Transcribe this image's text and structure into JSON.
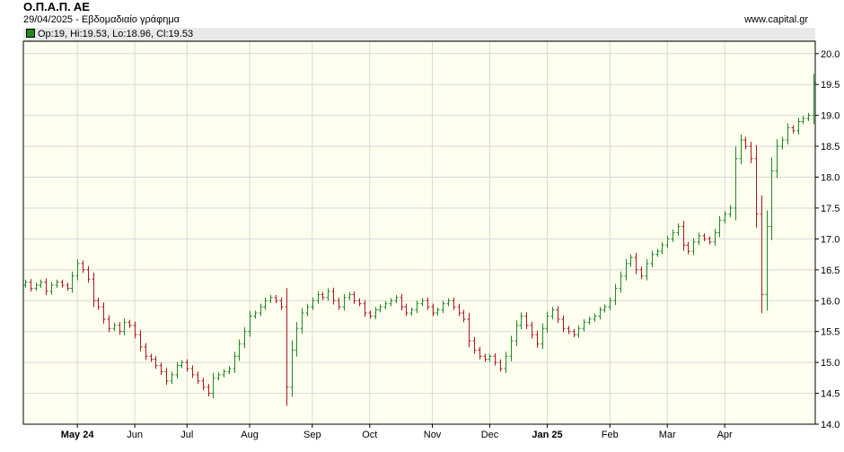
{
  "header": {
    "title": "Ο.Π.Α.Π. ΑΕ",
    "subtitle": "29/04/2025 - Εβδομαδιαίο γράφημα",
    "source": "www.capital.gr"
  },
  "legend": {
    "text": "Op:19, Hi:19.53, Lo:18.96, Cl:19.53",
    "color": "#1e8a1e"
  },
  "colors": {
    "up": "#1e8a1e",
    "down": "#b01818",
    "background": "#fffff0",
    "grid": "#d8d8d8"
  },
  "chart_data": {
    "type": "ohlc",
    "title": "Ο.Π.Α.Π. ΑΕ",
    "subtitle": "29/04/2025 - Εβδομαδιαίο γράφημα",
    "ylim": [
      14.0,
      20.2
    ],
    "yticks": [
      "14.0",
      "14.5",
      "15.0",
      "15.5",
      "16.0",
      "16.5",
      "17.0",
      "17.5",
      "18.0",
      "18.5",
      "19.0",
      "19.5",
      "20.0"
    ],
    "xticks": [
      {
        "label": "May 24",
        "index": 10,
        "bold": true
      },
      {
        "label": "Jun",
        "index": 21,
        "bold": false
      },
      {
        "label": "Jul",
        "index": 31,
        "bold": false
      },
      {
        "label": "Aug",
        "index": 43,
        "bold": false
      },
      {
        "label": "Sep",
        "index": 55,
        "bold": false
      },
      {
        "label": "Oct",
        "index": 66,
        "bold": false
      },
      {
        "label": "Nov",
        "index": 78,
        "bold": false
      },
      {
        "label": "Dec",
        "index": 89,
        "bold": false
      },
      {
        "label": "Jan 25",
        "index": 100,
        "bold": true
      },
      {
        "label": "Feb",
        "index": 112,
        "bold": false
      },
      {
        "label": "Mar",
        "index": 123,
        "bold": false
      },
      {
        "label": "Apr",
        "index": 134,
        "bold": false
      }
    ],
    "closes": [
      16.3,
      16.2,
      16.25,
      16.3,
      16.15,
      16.25,
      16.3,
      16.25,
      16.2,
      16.4,
      16.6,
      16.5,
      16.35,
      16.0,
      15.9,
      15.7,
      15.55,
      15.6,
      15.5,
      15.65,
      15.6,
      15.45,
      15.25,
      15.1,
      15.05,
      14.95,
      14.85,
      14.7,
      14.8,
      14.95,
      15.0,
      14.9,
      14.8,
      14.7,
      14.6,
      14.5,
      14.75,
      14.8,
      14.85,
      14.9,
      15.1,
      15.3,
      15.5,
      15.75,
      15.8,
      15.9,
      16.0,
      16.05,
      16.0,
      15.9,
      14.6,
      15.2,
      15.55,
      15.8,
      15.9,
      16.0,
      16.1,
      16.05,
      16.15,
      16.0,
      15.9,
      16.05,
      16.1,
      16.0,
      15.95,
      15.8,
      15.75,
      15.85,
      15.9,
      15.95,
      16.0,
      16.05,
      15.9,
      15.8,
      15.85,
      15.95,
      16.0,
      15.9,
      15.8,
      15.85,
      15.95,
      16.0,
      15.9,
      15.8,
      15.7,
      15.35,
      15.2,
      15.1,
      15.05,
      15.1,
      15.0,
      14.9,
      15.1,
      15.35,
      15.6,
      15.75,
      15.6,
      15.45,
      15.3,
      15.55,
      15.75,
      15.85,
      15.7,
      15.55,
      15.5,
      15.45,
      15.55,
      15.65,
      15.7,
      15.75,
      15.85,
      15.9,
      16.0,
      16.2,
      16.4,
      16.6,
      16.7,
      16.5,
      16.4,
      16.6,
      16.75,
      16.8,
      16.9,
      17.0,
      17.1,
      17.2,
      16.9,
      16.8,
      16.95,
      17.05,
      17.0,
      16.95,
      17.1,
      17.3,
      17.4,
      17.5,
      18.3,
      18.6,
      18.5,
      18.3,
      17.4,
      16.1,
      17.2,
      18.1,
      18.5,
      18.6,
      18.8,
      18.75,
      18.9,
      18.95,
      19.0,
      19.53
    ]
  }
}
